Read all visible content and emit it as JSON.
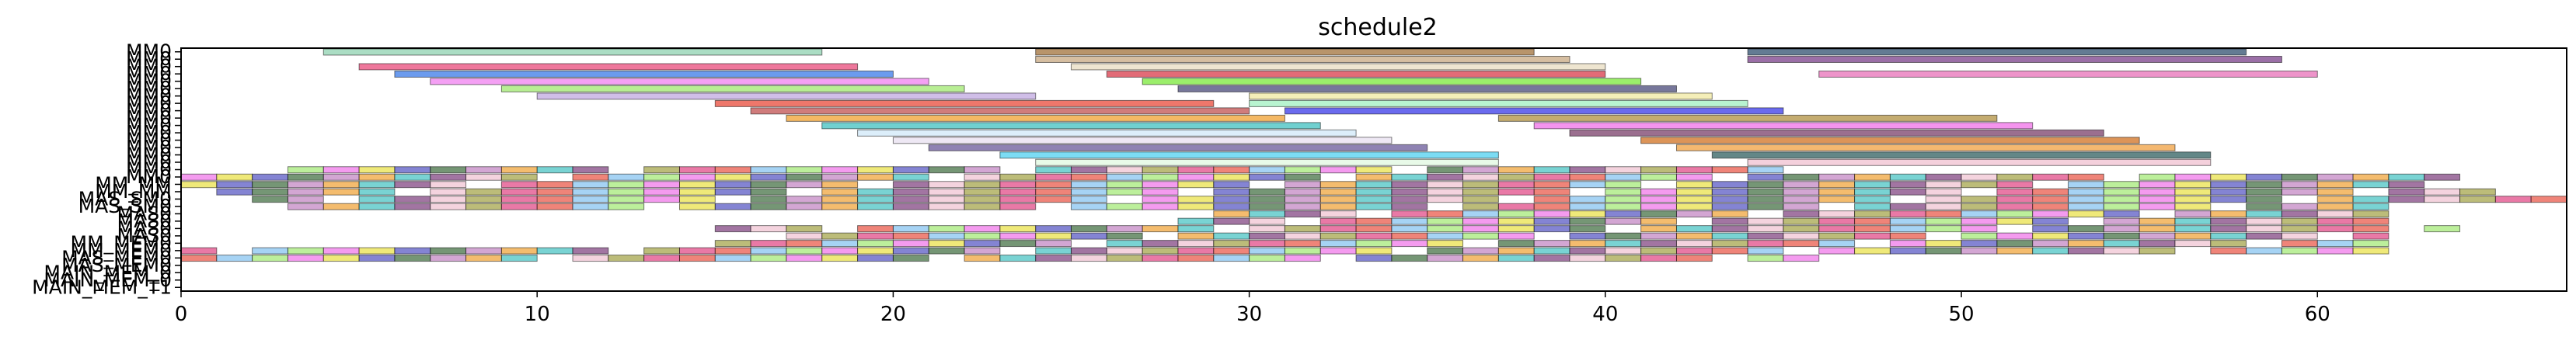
{
  "chart_data": {
    "type": "gantt",
    "title": "schedule2",
    "xlim": [
      0,
      67
    ],
    "xticks": [
      0,
      10,
      20,
      30,
      40,
      50,
      60
    ],
    "grid": false,
    "legend": "none",
    "rows": [
      "MM0",
      "MM0",
      "MM0",
      "MM0",
      "MM0",
      "MM0",
      "MM0",
      "MM0",
      "MM0",
      "MM0",
      "MM0",
      "MM0",
      "MM0",
      "MM0",
      "MM0",
      "MM0",
      "MM0",
      "MM0",
      "MM_MM",
      "MM_MM",
      "MAS_SM0",
      "MAS_SM0",
      "MAS0",
      "MAS0",
      "MAS0",
      "MAS0",
      "MM_MEM0",
      "MM_MEM0",
      "MAS_MEM0",
      "MAS_MEM0",
      "MAIN_MEM_0",
      "MAIN_MEM_0",
      "MAIN_MEM_T1"
    ],
    "bars": [
      {
        "row": 0,
        "start": 4.0,
        "end": 18.0,
        "color": "#8fd1b0"
      },
      {
        "row": 0,
        "start": 24.0,
        "end": 38.0,
        "color": "#a0703a"
      },
      {
        "row": 0,
        "start": 44.0,
        "end": 58.0,
        "color": "#2f4f6f"
      },
      {
        "row": 1,
        "start": 24.0,
        "end": 39.0,
        "color": "#c8a882"
      },
      {
        "row": 1,
        "start": 44.0,
        "end": 59.0,
        "color": "#7a3f8a"
      },
      {
        "row": 2,
        "start": 5.0,
        "end": 19.0,
        "color": "#e84a7a"
      },
      {
        "row": 2,
        "start": 25.0,
        "end": 40.0,
        "color": "#e8dcc0"
      },
      {
        "row": 3,
        "start": 6.0,
        "end": 20.0,
        "color": "#3a7ae8"
      },
      {
        "row": 3,
        "start": 26.0,
        "end": 40.0,
        "color": "#d83a4a"
      },
      {
        "row": 3,
        "start": 46.0,
        "end": 60.0,
        "color": "#e870b8"
      },
      {
        "row": 4,
        "start": 7.0,
        "end": 21.0,
        "color": "#f080f0"
      },
      {
        "row": 4,
        "start": 27.0,
        "end": 41.0,
        "color": "#7ae83a"
      },
      {
        "row": 5,
        "start": 9.0,
        "end": 22.0,
        "color": "#a0e870"
      },
      {
        "row": 5,
        "start": 28.0,
        "end": 42.0,
        "color": "#4a4a7a"
      },
      {
        "row": 6,
        "start": 10.0,
        "end": 24.0,
        "color": "#c0a8e0"
      },
      {
        "row": 6,
        "start": 30.0,
        "end": 43.0,
        "color": "#f0e8a0"
      },
      {
        "row": 7,
        "start": 15.0,
        "end": 29.0,
        "color": "#e84a3a"
      },
      {
        "row": 7,
        "start": 30.0,
        "end": 44.0,
        "color": "#a0f0c0"
      },
      {
        "row": 8,
        "start": 16.0,
        "end": 30.0,
        "color": "#c05050"
      },
      {
        "row": 8,
        "start": 31.0,
        "end": 45.0,
        "color": "#3a3ae8"
      },
      {
        "row": 9,
        "start": 17.0,
        "end": 31.0,
        "color": "#f0a030"
      },
      {
        "row": 9,
        "start": 37.0,
        "end": 51.0,
        "color": "#b09040"
      },
      {
        "row": 10,
        "start": 18.0,
        "end": 32.0,
        "color": "#40c0c0"
      },
      {
        "row": 10,
        "start": 38.0,
        "end": 52.0,
        "color": "#f070e8"
      },
      {
        "row": 11,
        "start": 19.0,
        "end": 33.0,
        "color": "#d0e8f8"
      },
      {
        "row": 11,
        "start": 39.0,
        "end": 54.0,
        "color": "#7a3f6a"
      },
      {
        "row": 12,
        "start": 20.0,
        "end": 34.0,
        "color": "#e8e0f0"
      },
      {
        "row": 12,
        "start": 41.0,
        "end": 55.0,
        "color": "#d07020"
      },
      {
        "row": 13,
        "start": 21.0,
        "end": 35.0,
        "color": "#6a5a9a"
      },
      {
        "row": 13,
        "start": 42.0,
        "end": 56.0,
        "color": "#f0a040"
      },
      {
        "row": 14,
        "start": 23.0,
        "end": 37.0,
        "color": "#50d0f0"
      },
      {
        "row": 14,
        "start": 43.0,
        "end": 57.0,
        "color": "#2f5f5f"
      },
      {
        "row": 15,
        "start": 24.0,
        "end": 37.0,
        "color": "#e0f8e0"
      },
      {
        "row": 15,
        "start": 44.0,
        "end": 57.0,
        "color": "#f0c0d0"
      },
      {
        "row": 16,
        "start": 3.0,
        "end": 46.0,
        "color": "#7a3a7a",
        "segments": true
      },
      {
        "row": 17,
        "start": 0.0,
        "end": 64.0,
        "color": "#80c0f0",
        "segments": true
      },
      {
        "row": 18,
        "start": 0.0,
        "end": 64.0,
        "color": "#c080c0",
        "segments": true
      },
      {
        "row": 19,
        "start": 1.0,
        "end": 65.0,
        "color": "#f0a0c0",
        "segments": true
      },
      {
        "row": 20,
        "start": 2.0,
        "end": 67.0,
        "color": "#80d0a0",
        "segments": true
      },
      {
        "row": 21,
        "start": 3.0,
        "end": 62.0,
        "color": "#e8e040",
        "segments": true
      },
      {
        "row": 22,
        "start": 29.0,
        "end": 62.0,
        "color": "#3a6a3a",
        "segments": true
      },
      {
        "row": 23,
        "start": 28.0,
        "end": 62.0,
        "color": "#e04080",
        "segments": true
      },
      {
        "row": 24,
        "start": 15.0,
        "end": 64.0,
        "color": "#a0a040",
        "segments": true
      },
      {
        "row": 25,
        "start": 17.0,
        "end": 62.0,
        "color": "#a0f0c0",
        "segments": true
      },
      {
        "row": 26,
        "start": 15.0,
        "end": 62.0,
        "color": "#5050c0",
        "segments": true
      },
      {
        "row": 27,
        "start": 0.0,
        "end": 62.0,
        "color": "#f0e0a0",
        "segments": true
      },
      {
        "row": 28,
        "start": 0.0,
        "end": 46.0,
        "color": "#e85040",
        "segments": true
      }
    ]
  }
}
